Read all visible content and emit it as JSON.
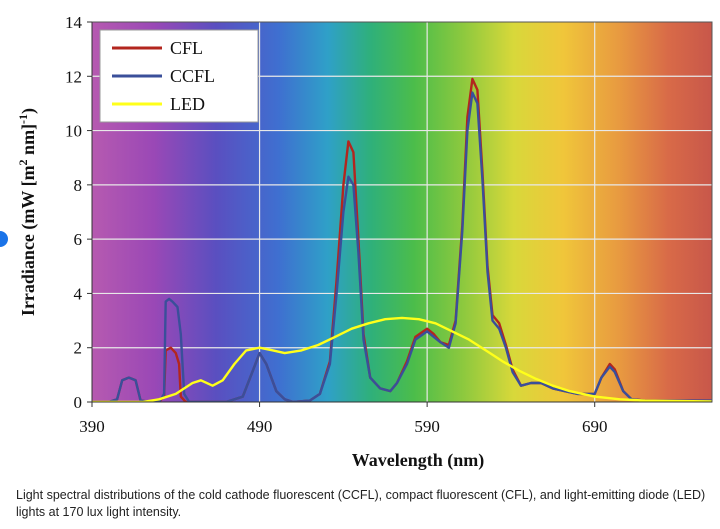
{
  "chart_data": {
    "type": "line",
    "xlabel": "Wavelength (nm)",
    "ylabel_parts": [
      "Irradiance (mW [m",
      "2",
      " nm]",
      "-1",
      ")"
    ],
    "xlim": [
      390,
      760
    ],
    "ylim": [
      0,
      14
    ],
    "x_ticks": [
      390,
      490,
      590,
      690
    ],
    "y_ticks": [
      0,
      2,
      4,
      6,
      8,
      10,
      12,
      14
    ],
    "grid": true,
    "legend_position": "top-left",
    "background": "visible-spectrum gradient",
    "series": [
      {
        "name": "CFL",
        "color": "#b3261e",
        "points": [
          [
            390,
            0
          ],
          [
            400,
            0
          ],
          [
            405,
            0.1
          ],
          [
            408,
            0.8
          ],
          [
            412,
            0.9
          ],
          [
            416,
            0.8
          ],
          [
            419,
            0.05
          ],
          [
            425,
            0
          ],
          [
            430,
            0
          ],
          [
            433,
            0.2
          ],
          [
            434,
            1.9
          ],
          [
            437,
            2.0
          ],
          [
            440,
            1.8
          ],
          [
            442,
            1.4
          ],
          [
            443,
            0.2
          ],
          [
            446,
            0
          ],
          [
            470,
            0
          ],
          [
            480,
            0.2
          ],
          [
            485,
            1.0
          ],
          [
            490,
            1.8
          ],
          [
            494,
            1.4
          ],
          [
            500,
            0.4
          ],
          [
            505,
            0.1
          ],
          [
            510,
            0
          ],
          [
            520,
            0.05
          ],
          [
            526,
            0.3
          ],
          [
            532,
            1.5
          ],
          [
            536,
            4.5
          ],
          [
            540,
            8.0
          ],
          [
            543,
            9.6
          ],
          [
            546,
            9.2
          ],
          [
            549,
            6.0
          ],
          [
            552,
            2.5
          ],
          [
            556,
            0.9
          ],
          [
            562,
            0.5
          ],
          [
            568,
            0.4
          ],
          [
            572,
            0.7
          ],
          [
            578,
            1.5
          ],
          [
            583,
            2.4
          ],
          [
            590,
            2.7
          ],
          [
            594,
            2.5
          ],
          [
            598,
            2.2
          ],
          [
            603,
            2.1
          ],
          [
            607,
            3.0
          ],
          [
            611,
            6.5
          ],
          [
            614,
            10.5
          ],
          [
            617,
            11.9
          ],
          [
            620,
            11.5
          ],
          [
            623,
            8.5
          ],
          [
            626,
            5.0
          ],
          [
            629,
            3.2
          ],
          [
            633,
            2.9
          ],
          [
            637,
            2.1
          ],
          [
            641,
            1.2
          ],
          [
            646,
            0.6
          ],
          [
            652,
            0.7
          ],
          [
            658,
            0.7
          ],
          [
            665,
            0.5
          ],
          [
            672,
            0.4
          ],
          [
            680,
            0.3
          ],
          [
            690,
            0.3
          ],
          [
            694,
            0.9
          ],
          [
            699,
            1.4
          ],
          [
            702,
            1.2
          ],
          [
            707,
            0.4
          ],
          [
            712,
            0.1
          ],
          [
            720,
            0.05
          ],
          [
            760,
            0.05
          ]
        ]
      },
      {
        "name": "CCFL",
        "color": "#3a4f9a",
        "points": [
          [
            390,
            0
          ],
          [
            400,
            0
          ],
          [
            405,
            0.1
          ],
          [
            408,
            0.8
          ],
          [
            412,
            0.9
          ],
          [
            416,
            0.8
          ],
          [
            419,
            0.05
          ],
          [
            425,
            0
          ],
          [
            430,
            0
          ],
          [
            433,
            0.3
          ],
          [
            434,
            3.7
          ],
          [
            436,
            3.8
          ],
          [
            438,
            3.7
          ],
          [
            441,
            3.5
          ],
          [
            443,
            2.5
          ],
          [
            445,
            0.3
          ],
          [
            448,
            0
          ],
          [
            470,
            0
          ],
          [
            480,
            0.2
          ],
          [
            485,
            1.0
          ],
          [
            490,
            1.8
          ],
          [
            494,
            1.4
          ],
          [
            500,
            0.4
          ],
          [
            505,
            0.1
          ],
          [
            510,
            0
          ],
          [
            520,
            0.05
          ],
          [
            526,
            0.3
          ],
          [
            532,
            1.4
          ],
          [
            536,
            4.0
          ],
          [
            540,
            7.0
          ],
          [
            543,
            8.3
          ],
          [
            546,
            8.0
          ],
          [
            549,
            5.5
          ],
          [
            552,
            2.3
          ],
          [
            556,
            0.9
          ],
          [
            562,
            0.5
          ],
          [
            568,
            0.4
          ],
          [
            572,
            0.7
          ],
          [
            578,
            1.4
          ],
          [
            583,
            2.3
          ],
          [
            590,
            2.6
          ],
          [
            594,
            2.4
          ],
          [
            598,
            2.2
          ],
          [
            603,
            2.0
          ],
          [
            607,
            2.9
          ],
          [
            611,
            6.3
          ],
          [
            614,
            10.0
          ],
          [
            617,
            11.4
          ],
          [
            620,
            11.0
          ],
          [
            623,
            8.2
          ],
          [
            626,
            4.8
          ],
          [
            629,
            3.0
          ],
          [
            633,
            2.7
          ],
          [
            637,
            2.0
          ],
          [
            641,
            1.1
          ],
          [
            646,
            0.6
          ],
          [
            652,
            0.7
          ],
          [
            658,
            0.7
          ],
          [
            665,
            0.5
          ],
          [
            672,
            0.4
          ],
          [
            680,
            0.3
          ],
          [
            690,
            0.3
          ],
          [
            694,
            0.9
          ],
          [
            699,
            1.3
          ],
          [
            702,
            1.1
          ],
          [
            707,
            0.4
          ],
          [
            712,
            0.1
          ],
          [
            720,
            0.05
          ],
          [
            760,
            0.05
          ]
        ]
      },
      {
        "name": "LED",
        "color": "#ffff1a",
        "points": [
          [
            390,
            0
          ],
          [
            420,
            0
          ],
          [
            430,
            0.1
          ],
          [
            440,
            0.3
          ],
          [
            450,
            0.7
          ],
          [
            455,
            0.8
          ],
          [
            462,
            0.6
          ],
          [
            468,
            0.8
          ],
          [
            475,
            1.4
          ],
          [
            482,
            1.9
          ],
          [
            490,
            2.0
          ],
          [
            498,
            1.9
          ],
          [
            505,
            1.8
          ],
          [
            515,
            1.9
          ],
          [
            525,
            2.1
          ],
          [
            535,
            2.4
          ],
          [
            545,
            2.7
          ],
          [
            555,
            2.9
          ],
          [
            565,
            3.05
          ],
          [
            575,
            3.1
          ],
          [
            585,
            3.05
          ],
          [
            595,
            2.9
          ],
          [
            605,
            2.6
          ],
          [
            615,
            2.3
          ],
          [
            625,
            1.9
          ],
          [
            635,
            1.5
          ],
          [
            645,
            1.15
          ],
          [
            655,
            0.85
          ],
          [
            665,
            0.6
          ],
          [
            675,
            0.4
          ],
          [
            690,
            0.2
          ],
          [
            705,
            0.1
          ],
          [
            720,
            0.05
          ],
          [
            760,
            0.02
          ]
        ]
      }
    ]
  },
  "caption": "Light spectral distributions of the cold cathode fluorescent (CCFL), compact fluorescent (CFL), and light-emitting diode (LED) lights at 170 lux light intensity."
}
